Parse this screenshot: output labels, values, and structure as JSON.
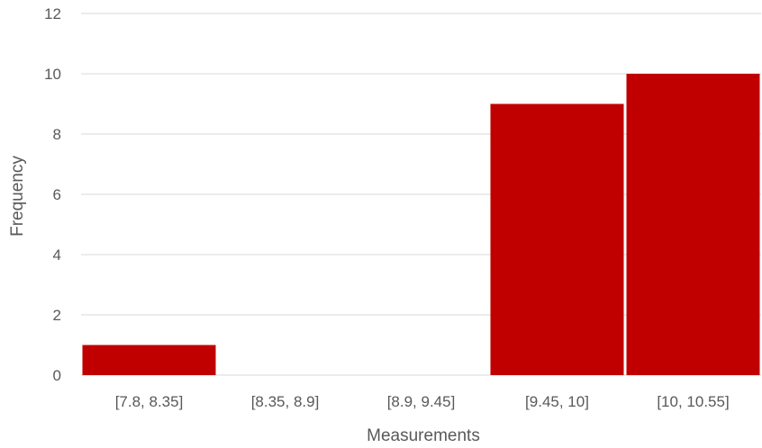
{
  "chart_data": {
    "type": "bar",
    "title": "",
    "xlabel": "Measurements",
    "ylabel": "Frequency",
    "categories": [
      "[7.8, 8.35]",
      "[8.35, 8.9]",
      "[8.9, 9.45]",
      "[9.45, 10]",
      "[10, 10.55]"
    ],
    "values": [
      1,
      0,
      0,
      9,
      10
    ],
    "ylim": [
      0,
      12
    ],
    "yticks": [
      "0",
      "2",
      "4",
      "6",
      "8",
      "10",
      "12"
    ],
    "grid": true,
    "legend": "none",
    "bar_color": "#c00000"
  }
}
